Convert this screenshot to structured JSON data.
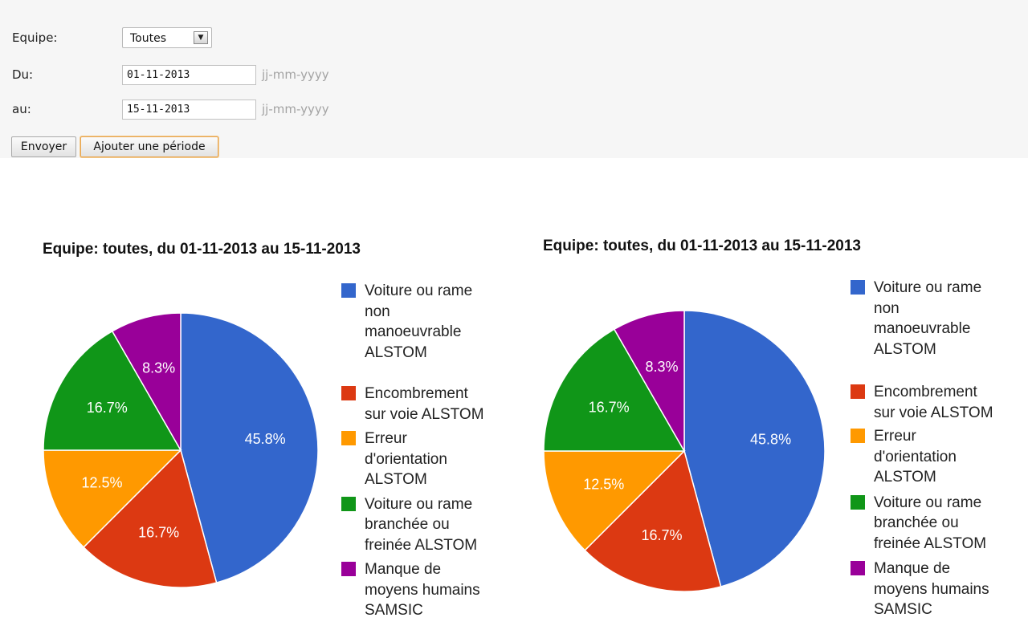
{
  "form": {
    "equipe_label": "Equipe:",
    "equipe_value": "Toutes",
    "du_label": "Du:",
    "du_value": "01-11-2013",
    "au_label": "au:",
    "au_value": "15-11-2013",
    "date_hint": "jj-mm-yyyy",
    "submit_label": "Envoyer",
    "add_period_label": "Ajouter une période"
  },
  "chart_data": [
    {
      "type": "pie",
      "title": "Equipe: toutes, du 01-11-2013 au 15-11-2013",
      "categories": [
        "Voiture ou rame\nnon\nmanoeuvrable\nALSTOM",
        "Encombrement\nsur voie ALSTOM",
        "Erreur\nd'orientation\nALSTOM",
        "Voiture ou rame\nbranchée ou\nfreinée ALSTOM",
        "Manque de\nmoyens humains\nSAMSIC"
      ],
      "values": [
        45.8,
        16.7,
        12.5,
        16.7,
        8.3
      ],
      "labels": [
        "45.8%",
        "16.7%",
        "12.5%",
        "16.7%",
        "8.3%"
      ],
      "colors": [
        "#3366cc",
        "#dc3912",
        "#ff9900",
        "#109618",
        "#990099"
      ],
      "legend": "right"
    },
    {
      "type": "pie",
      "title": "Equipe: toutes, du 01-11-2013 au 15-11-2013",
      "categories": [
        "Voiture ou rame\nnon\nmanoeuvrable\nALSTOM",
        "Encombrement\nsur voie ALSTOM",
        "Erreur\nd'orientation\nALSTOM",
        "Voiture ou rame\nbranchée ou\nfreinée ALSTOM",
        "Manque de\nmoyens humains\nSAMSIC"
      ],
      "values": [
        45.8,
        16.7,
        12.5,
        16.7,
        8.3
      ],
      "labels": [
        "45.8%",
        "16.7%",
        "12.5%",
        "16.7%",
        "8.3%"
      ],
      "colors": [
        "#3366cc",
        "#dc3912",
        "#ff9900",
        "#109618",
        "#990099"
      ],
      "legend": "right"
    }
  ]
}
